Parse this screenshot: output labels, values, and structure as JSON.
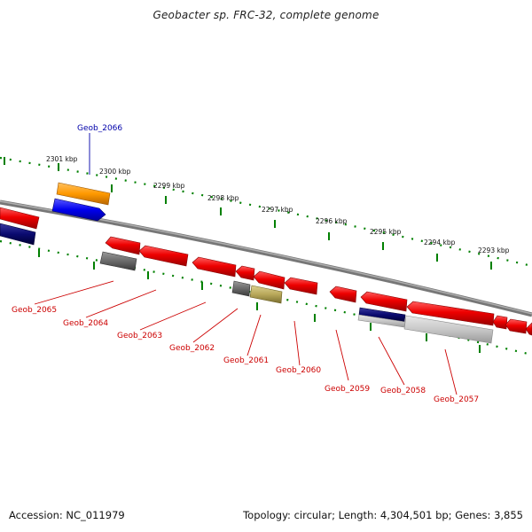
{
  "title": "Geobacter sp. FRC-32, complete genome",
  "accession": "Accession: NC_011979",
  "summary": "Topology: circular; Length: 4,304,501 bp; Genes: 3,855",
  "colors": {
    "forward_gene_label": "#0000aa",
    "reverse_gene_label": "#cc0000",
    "tick": "#008000",
    "backbone": "#7a7a7a"
  },
  "kbp_labels": [
    "2301 kbp",
    "2300 kbp",
    "2299 kbp",
    "2298 kbp",
    "2297 kbp",
    "2296 kbp",
    "2295 kbp",
    "2294 kbp",
    "2293 kbp"
  ],
  "genes": [
    {
      "name": "Geob_2066",
      "strand": "forward"
    },
    {
      "name": "Geob_2065",
      "strand": "reverse"
    },
    {
      "name": "Geob_2064",
      "strand": "reverse"
    },
    {
      "name": "Geob_2063",
      "strand": "reverse"
    },
    {
      "name": "Geob_2062",
      "strand": "reverse"
    },
    {
      "name": "Geob_2061",
      "strand": "reverse"
    },
    {
      "name": "Geob_2060",
      "strand": "reverse"
    },
    {
      "name": "Geob_2059",
      "strand": "reverse"
    },
    {
      "name": "Geob_2058",
      "strand": "reverse"
    },
    {
      "name": "Geob_2057",
      "strand": "reverse"
    }
  ]
}
